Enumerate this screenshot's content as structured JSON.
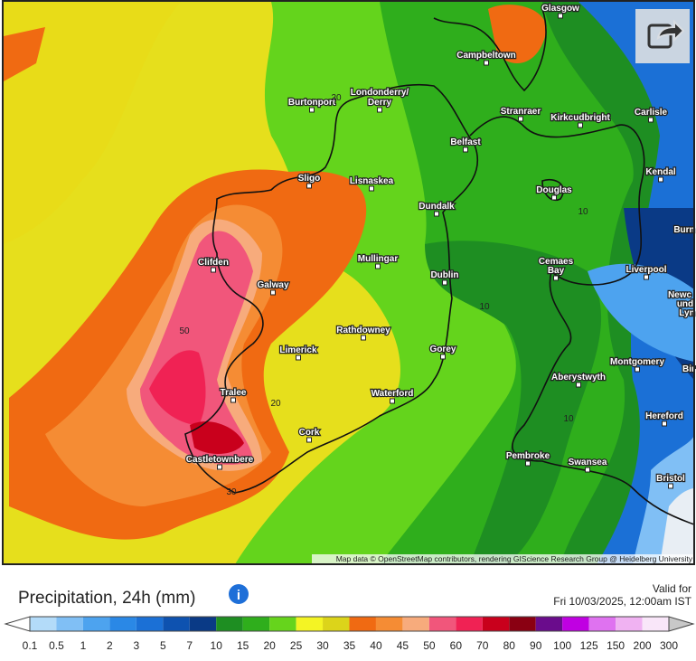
{
  "header": {
    "title": "Precipitation, 24h (mm)",
    "valid_label": "Valid for",
    "valid_time": "Fri 10/03/2025, 12:00am IST"
  },
  "map": {
    "places": [
      "Glasgow",
      "Campbeltown",
      "Londonderry/",
      "Derry",
      "Burtonport",
      "Stranraer",
      "Kirkcudbright",
      "Carlisle",
      "Belfast",
      "Kendal",
      "Sligo",
      "Lisnaskea",
      "Douglas",
      "Dundalk",
      "Burn",
      "Clifden",
      "Mullingar",
      "Cemaes",
      "Bay",
      "Dublin",
      "Liverpool",
      "Newc",
      "und",
      "Lyn",
      "Galway",
      "Rathdowney",
      "Limerick",
      "Gorey",
      "Montgomery",
      "Bir",
      "Aberystwyth",
      "Tralee",
      "Waterford",
      "Hereford",
      "Cork",
      "Castletownbere",
      "Pembroke",
      "Swansea",
      "Bristol"
    ],
    "contour_labels": [
      "20",
      "10",
      "10",
      "50",
      "20",
      "10",
      "30"
    ],
    "attribution": "Map data © OpenStreetMap contributors, rendering GIScience Research Group @ Heidelberg University"
  },
  "legend": {
    "labels": [
      "0.1",
      "0.5",
      "1",
      "2",
      "3",
      "5",
      "7",
      "10",
      "15",
      "20",
      "25",
      "30",
      "35",
      "40",
      "45",
      "50",
      "60",
      "70",
      "80",
      "90",
      "100",
      "125",
      "150",
      "200",
      "300"
    ],
    "colors": [
      "#ffffff",
      "#b3dbf9",
      "#80bff5",
      "#4da3ef",
      "#2a88e6",
      "#1b70d6",
      "#0e52b0",
      "#0a3a86",
      "#1e8e22",
      "#2fae1c",
      "#66d41c",
      "#f4f424",
      "#dcd41a",
      "#f06a12",
      "#f58c34",
      "#f7ab7c",
      "#f1567b",
      "#f02254",
      "#c9001c",
      "#8a0012",
      "#6a0c8c",
      "#c000e2",
      "#df72f0",
      "#f0b2f2",
      "#f9e6f9",
      "#c8c8c8"
    ]
  }
}
